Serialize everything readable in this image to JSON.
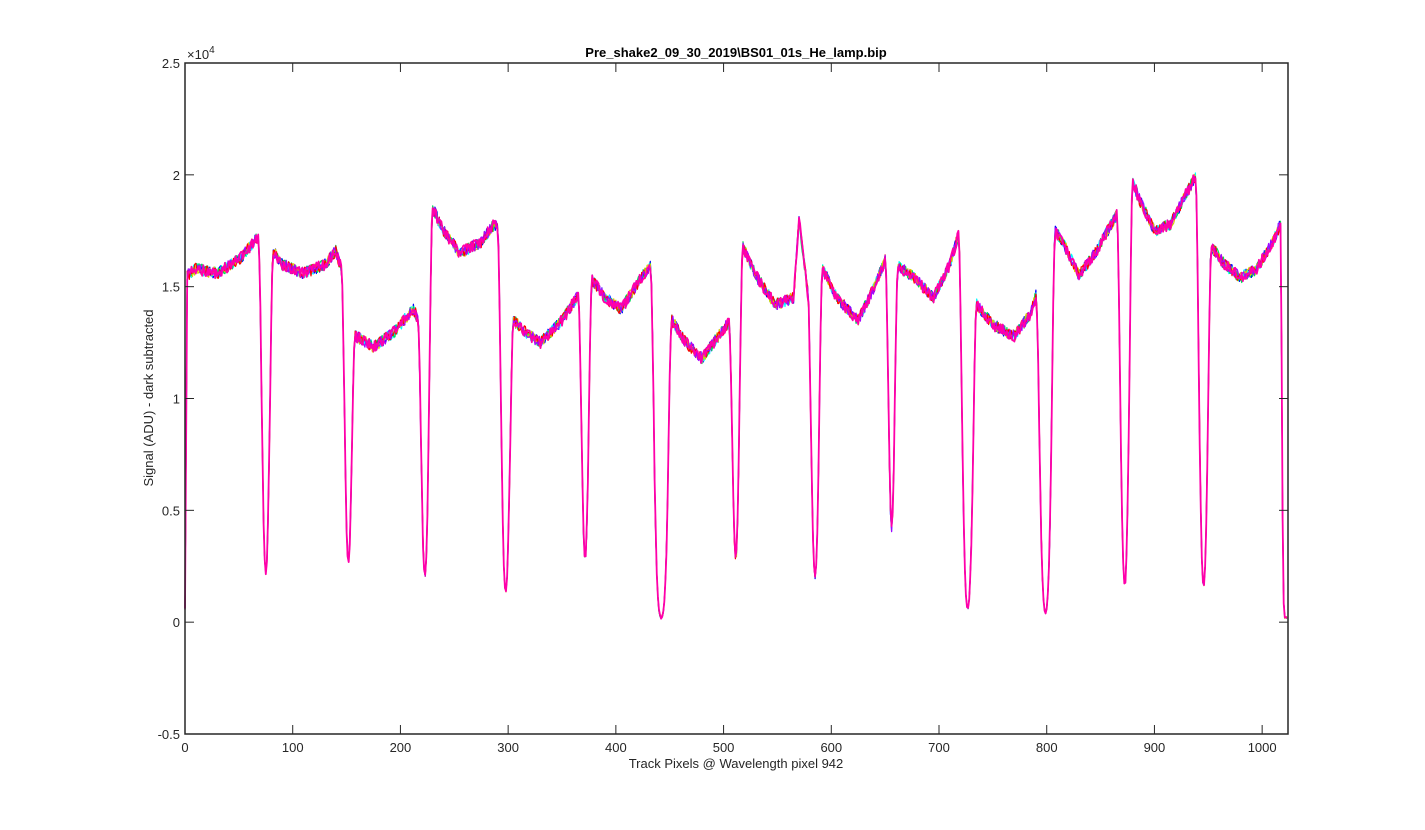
{
  "chart_data": {
    "type": "line",
    "title": "Pre_shake2_09_30_2019\\BS01_01s_He_lamp.bip",
    "xlabel": "Track Pixels @ Wavelength pixel 942",
    "ylabel": "Signal (ADU) - dark subtracted",
    "y_exponent_label": "×10",
    "y_exponent_power": "4",
    "y_scale": 10000,
    "xlim": [
      0,
      1024
    ],
    "ylim": [
      -5000,
      25000
    ],
    "grid": false,
    "legend": "none",
    "x_ticks": [
      0,
      100,
      200,
      300,
      400,
      500,
      600,
      700,
      800,
      900,
      1000
    ],
    "x_tick_labels": [
      "0",
      "100",
      "200",
      "300",
      "400",
      "500",
      "600",
      "700",
      "800",
      "900",
      "1000"
    ],
    "y_ticks": [
      -5000,
      0,
      5000,
      10000,
      15000,
      20000,
      25000
    ],
    "y_tick_labels": [
      "-0.5",
      "0",
      "0.5",
      "1",
      "1.5",
      "2",
      "2.5"
    ],
    "series_colors": [
      "#0000ff",
      "#00ffff",
      "#00dd55",
      "#ddcc00",
      "#ff0000",
      "#aa00ff",
      "#ff00aa"
    ],
    "segments": [
      {
        "x": [
          2,
          10,
          30,
          50,
          62,
          68
        ],
        "y": [
          15500,
          15800,
          15600,
          16200,
          16900,
          17200
        ]
      },
      {
        "x": [
          82,
          90,
          110,
          130,
          140,
          145
        ],
        "y": [
          16600,
          16000,
          15600,
          16000,
          16600,
          15800
        ]
      },
      {
        "x": [
          158,
          175,
          195,
          205,
          212,
          216
        ],
        "y": [
          12800,
          12300,
          13000,
          13600,
          14000,
          13600
        ]
      },
      {
        "x": [
          230,
          240,
          255,
          275,
          285,
          290
        ],
        "y": [
          18500,
          17500,
          16500,
          17000,
          17700,
          17800
        ]
      },
      {
        "x": [
          305,
          315,
          330,
          350,
          365
        ],
        "y": [
          13500,
          13000,
          12500,
          13500,
          14600
        ]
      },
      {
        "x": [
          378,
          390,
          405,
          425,
          432
        ],
        "y": [
          15300,
          14500,
          14000,
          15500,
          15900
        ]
      },
      {
        "x": [
          452,
          465,
          480,
          500,
          505
        ],
        "y": [
          13500,
          12500,
          11800,
          13100,
          13400
        ]
      },
      {
        "x": [
          518,
          530,
          548,
          565,
          570,
          578
        ],
        "y": [
          16800,
          15500,
          14200,
          14500,
          18000,
          14800
        ]
      },
      {
        "x": [
          592,
          605,
          625,
          640,
          650
        ],
        "y": [
          15800,
          14500,
          13500,
          15000,
          16200
        ]
      },
      {
        "x": [
          662,
          675,
          695,
          710,
          718
        ],
        "y": [
          15900,
          15500,
          14500,
          16000,
          17300
        ]
      },
      {
        "x": [
          735,
          750,
          770,
          785,
          790
        ],
        "y": [
          14200,
          13300,
          12800,
          13800,
          14600
        ]
      },
      {
        "x": [
          808,
          815,
          830,
          845,
          860,
          865
        ],
        "y": [
          17500,
          17000,
          15500,
          16500,
          17800,
          18200
        ]
      },
      {
        "x": [
          880,
          885,
          900,
          915,
          930,
          938
        ],
        "y": [
          19700,
          19000,
          17500,
          17800,
          19200,
          19900
        ]
      },
      {
        "x": [
          953,
          965,
          980,
          995,
          1010,
          1017
        ],
        "y": [
          16800,
          16000,
          15400,
          15800,
          17000,
          17800
        ]
      }
    ]
  }
}
